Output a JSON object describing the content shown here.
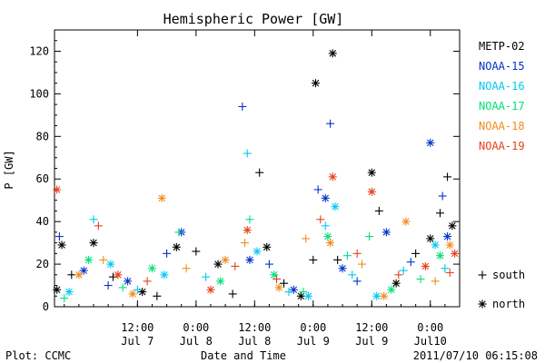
{
  "chart_data": {
    "type": "scatter",
    "title": "Hemispheric Power [GW]",
    "xlabel": "Date and Time",
    "ylabel": "P [GW]",
    "ylim": [
      0,
      130
    ],
    "yticks": [
      0,
      20,
      40,
      60,
      80,
      100,
      120
    ],
    "xlim": [
      "2011-07-06 19:00",
      "2011-07-10 06:00"
    ],
    "xticks": [
      {
        "t": "2011-07-07 12:00",
        "time": "12:00",
        "day": "Jul 7"
      },
      {
        "t": "2011-07-08 00:00",
        "time": "0:00",
        "day": "Jul 8"
      },
      {
        "t": "2011-07-08 12:00",
        "time": "12:00",
        "day": "Jul 8"
      },
      {
        "t": "2011-07-09 00:00",
        "time": "0:00",
        "day": "Jul 9"
      },
      {
        "t": "2011-07-09 12:00",
        "time": "12:00",
        "day": "Jul 9"
      },
      {
        "t": "2011-07-10 00:00",
        "time": "0:00",
        "day": "Jul10"
      }
    ],
    "symbols": [
      {
        "marker": "+",
        "label": "south"
      },
      {
        "marker": "*",
        "label": "north"
      }
    ],
    "series": [
      {
        "name": "METP-02",
        "color": "#000000",
        "points": [
          {
            "t": "2011-07-06 19:30",
            "y": 8,
            "hemi": "north"
          },
          {
            "t": "2011-07-06 20:30",
            "y": 29,
            "hemi": "north"
          },
          {
            "t": "2011-07-06 22:30",
            "y": 15,
            "hemi": "south"
          },
          {
            "t": "2011-07-07 03:00",
            "y": 30,
            "hemi": "north"
          },
          {
            "t": "2011-07-07 07:00",
            "y": 14,
            "hemi": "south"
          },
          {
            "t": "2011-07-07 13:00",
            "y": 7,
            "hemi": "north"
          },
          {
            "t": "2011-07-07 16:00",
            "y": 5,
            "hemi": "south"
          },
          {
            "t": "2011-07-07 20:00",
            "y": 28,
            "hemi": "north"
          },
          {
            "t": "2011-07-08 00:00",
            "y": 26,
            "hemi": "south"
          },
          {
            "t": "2011-07-08 04:30",
            "y": 20,
            "hemi": "north"
          },
          {
            "t": "2011-07-08 07:30",
            "y": 6,
            "hemi": "south"
          },
          {
            "t": "2011-07-08 13:00",
            "y": 63,
            "hemi": "south"
          },
          {
            "t": "2011-07-08 14:30",
            "y": 28,
            "hemi": "north"
          },
          {
            "t": "2011-07-08 18:00",
            "y": 11,
            "hemi": "south"
          },
          {
            "t": "2011-07-08 21:30",
            "y": 5,
            "hemi": "north"
          },
          {
            "t": "2011-07-09 00:00",
            "y": 22,
            "hemi": "south"
          },
          {
            "t": "2011-07-09 00:30",
            "y": 105,
            "hemi": "north"
          },
          {
            "t": "2011-07-09 04:00",
            "y": 119,
            "hemi": "north"
          },
          {
            "t": "2011-07-09 05:00",
            "y": 22,
            "hemi": "south"
          },
          {
            "t": "2011-07-09 12:00",
            "y": 63,
            "hemi": "north"
          },
          {
            "t": "2011-07-09 13:30",
            "y": 45,
            "hemi": "south"
          },
          {
            "t": "2011-07-09 17:00",
            "y": 11,
            "hemi": "north"
          },
          {
            "t": "2011-07-09 21:00",
            "y": 25,
            "hemi": "south"
          },
          {
            "t": "2011-07-10 00:00",
            "y": 32,
            "hemi": "north"
          },
          {
            "t": "2011-07-10 02:00",
            "y": 44,
            "hemi": "south"
          },
          {
            "t": "2011-07-10 03:30",
            "y": 61,
            "hemi": "south"
          },
          {
            "t": "2011-07-10 04:30",
            "y": 38,
            "hemi": "north"
          }
        ]
      },
      {
        "name": "NOAA-15",
        "color": "#0033cc",
        "points": [
          {
            "t": "2011-07-06 20:00",
            "y": 33,
            "hemi": "south"
          },
          {
            "t": "2011-07-07 01:00",
            "y": 17,
            "hemi": "north"
          },
          {
            "t": "2011-07-07 06:00",
            "y": 10,
            "hemi": "south"
          },
          {
            "t": "2011-07-07 10:00",
            "y": 12,
            "hemi": "north"
          },
          {
            "t": "2011-07-07 18:00",
            "y": 25,
            "hemi": "south"
          },
          {
            "t": "2011-07-07 21:00",
            "y": 35,
            "hemi": "north"
          },
          {
            "t": "2011-07-08 09:30",
            "y": 94,
            "hemi": "south"
          },
          {
            "t": "2011-07-08 11:00",
            "y": 22,
            "hemi": "north"
          },
          {
            "t": "2011-07-08 15:00",
            "y": 20,
            "hemi": "south"
          },
          {
            "t": "2011-07-08 20:00",
            "y": 8,
            "hemi": "north"
          },
          {
            "t": "2011-07-09 01:00",
            "y": 55,
            "hemi": "south"
          },
          {
            "t": "2011-07-09 02:30",
            "y": 51,
            "hemi": "north"
          },
          {
            "t": "2011-07-09 03:30",
            "y": 86,
            "hemi": "south"
          },
          {
            "t": "2011-07-09 06:00",
            "y": 18,
            "hemi": "north"
          },
          {
            "t": "2011-07-09 09:00",
            "y": 12,
            "hemi": "south"
          },
          {
            "t": "2011-07-09 15:00",
            "y": 35,
            "hemi": "north"
          },
          {
            "t": "2011-07-09 20:00",
            "y": 21,
            "hemi": "south"
          },
          {
            "t": "2011-07-10 00:00",
            "y": 77,
            "hemi": "north"
          },
          {
            "t": "2011-07-10 02:30",
            "y": 52,
            "hemi": "south"
          },
          {
            "t": "2011-07-10 03:30",
            "y": 33,
            "hemi": "north"
          }
        ]
      },
      {
        "name": "NOAA-16",
        "color": "#00c8f0",
        "points": [
          {
            "t": "2011-07-06 22:00",
            "y": 7,
            "hemi": "north"
          },
          {
            "t": "2011-07-07 03:00",
            "y": 41,
            "hemi": "south"
          },
          {
            "t": "2011-07-07 06:30",
            "y": 20,
            "hemi": "north"
          },
          {
            "t": "2011-07-07 12:00",
            "y": 8,
            "hemi": "south"
          },
          {
            "t": "2011-07-07 17:30",
            "y": 15,
            "hemi": "north"
          },
          {
            "t": "2011-07-08 02:00",
            "y": 14,
            "hemi": "south"
          },
          {
            "t": "2011-07-08 10:30",
            "y": 72,
            "hemi": "south"
          },
          {
            "t": "2011-07-08 12:30",
            "y": 26,
            "hemi": "north"
          },
          {
            "t": "2011-07-08 19:00",
            "y": 7,
            "hemi": "south"
          },
          {
            "t": "2011-07-08 23:00",
            "y": 5,
            "hemi": "north"
          },
          {
            "t": "2011-07-09 02:30",
            "y": 38,
            "hemi": "south"
          },
          {
            "t": "2011-07-09 04:30",
            "y": 47,
            "hemi": "north"
          },
          {
            "t": "2011-07-09 08:00",
            "y": 15,
            "hemi": "south"
          },
          {
            "t": "2011-07-09 13:00",
            "y": 5,
            "hemi": "north"
          },
          {
            "t": "2011-07-09 18:30",
            "y": 17,
            "hemi": "south"
          },
          {
            "t": "2011-07-10 01:00",
            "y": 29,
            "hemi": "north"
          },
          {
            "t": "2011-07-10 03:00",
            "y": 18,
            "hemi": "south"
          }
        ]
      },
      {
        "name": "NOAA-17",
        "color": "#00e07a",
        "points": [
          {
            "t": "2011-07-06 21:00",
            "y": 4,
            "hemi": "south"
          },
          {
            "t": "2011-07-07 02:00",
            "y": 22,
            "hemi": "north"
          },
          {
            "t": "2011-07-07 09:00",
            "y": 9,
            "hemi": "south"
          },
          {
            "t": "2011-07-07 15:00",
            "y": 18,
            "hemi": "north"
          },
          {
            "t": "2011-07-07 20:30",
            "y": 35,
            "hemi": "south"
          },
          {
            "t": "2011-07-08 05:00",
            "y": 12,
            "hemi": "north"
          },
          {
            "t": "2011-07-08 11:00",
            "y": 41,
            "hemi": "south"
          },
          {
            "t": "2011-07-08 16:00",
            "y": 15,
            "hemi": "north"
          },
          {
            "t": "2011-07-08 22:00",
            "y": 7,
            "hemi": "south"
          },
          {
            "t": "2011-07-09 03:00",
            "y": 33,
            "hemi": "north"
          },
          {
            "t": "2011-07-09 07:00",
            "y": 24,
            "hemi": "south"
          },
          {
            "t": "2011-07-09 11:30",
            "y": 33,
            "hemi": "south"
          },
          {
            "t": "2011-07-09 16:00",
            "y": 8,
            "hemi": "north"
          },
          {
            "t": "2011-07-09 22:00",
            "y": 13,
            "hemi": "south"
          },
          {
            "t": "2011-07-10 02:00",
            "y": 24,
            "hemi": "north"
          }
        ]
      },
      {
        "name": "NOAA-18",
        "color": "#f08c1e",
        "points": [
          {
            "t": "2011-07-07 00:00",
            "y": 15,
            "hemi": "north"
          },
          {
            "t": "2011-07-07 05:00",
            "y": 22,
            "hemi": "south"
          },
          {
            "t": "2011-07-07 11:00",
            "y": 6,
            "hemi": "north"
          },
          {
            "t": "2011-07-07 17:00",
            "y": 51,
            "hemi": "north"
          },
          {
            "t": "2011-07-07 22:00",
            "y": 18,
            "hemi": "south"
          },
          {
            "t": "2011-07-08 06:00",
            "y": 22,
            "hemi": "north"
          },
          {
            "t": "2011-07-08 10:00",
            "y": 30,
            "hemi": "south"
          },
          {
            "t": "2011-07-08 17:00",
            "y": 9,
            "hemi": "north"
          },
          {
            "t": "2011-07-08 22:30",
            "y": 32,
            "hemi": "south"
          },
          {
            "t": "2011-07-09 03:30",
            "y": 30,
            "hemi": "north"
          },
          {
            "t": "2011-07-09 10:00",
            "y": 20,
            "hemi": "south"
          },
          {
            "t": "2011-07-09 14:30",
            "y": 5,
            "hemi": "north"
          },
          {
            "t": "2011-07-09 19:00",
            "y": 40,
            "hemi": "north"
          },
          {
            "t": "2011-07-10 01:00",
            "y": 12,
            "hemi": "south"
          },
          {
            "t": "2011-07-10 04:00",
            "y": 29,
            "hemi": "north"
          }
        ]
      },
      {
        "name": "NOAA-19",
        "color": "#e8401a",
        "points": [
          {
            "t": "2011-07-06 19:30",
            "y": 55,
            "hemi": "north"
          },
          {
            "t": "2011-07-07 04:00",
            "y": 38,
            "hemi": "south"
          },
          {
            "t": "2011-07-07 08:00",
            "y": 15,
            "hemi": "north"
          },
          {
            "t": "2011-07-07 14:00",
            "y": 12,
            "hemi": "south"
          },
          {
            "t": "2011-07-08 03:00",
            "y": 8,
            "hemi": "north"
          },
          {
            "t": "2011-07-08 08:00",
            "y": 19,
            "hemi": "south"
          },
          {
            "t": "2011-07-08 10:30",
            "y": 36,
            "hemi": "north"
          },
          {
            "t": "2011-07-08 16:30",
            "y": 13,
            "hemi": "south"
          },
          {
            "t": "2011-07-09 01:30",
            "y": 41,
            "hemi": "south"
          },
          {
            "t": "2011-07-09 04:00",
            "y": 61,
            "hemi": "north"
          },
          {
            "t": "2011-07-09 09:00",
            "y": 25,
            "hemi": "south"
          },
          {
            "t": "2011-07-09 12:00",
            "y": 54,
            "hemi": "north"
          },
          {
            "t": "2011-07-09 17:30",
            "y": 15,
            "hemi": "south"
          },
          {
            "t": "2011-07-09 23:00",
            "y": 19,
            "hemi": "north"
          },
          {
            "t": "2011-07-10 04:00",
            "y": 16,
            "hemi": "south"
          },
          {
            "t": "2011-07-10 05:00",
            "y": 25,
            "hemi": "north"
          }
        ]
      }
    ]
  },
  "footer": {
    "plot_label": "Plot: CCMC",
    "timestamp": "2011/07/10 06:15:08"
  }
}
